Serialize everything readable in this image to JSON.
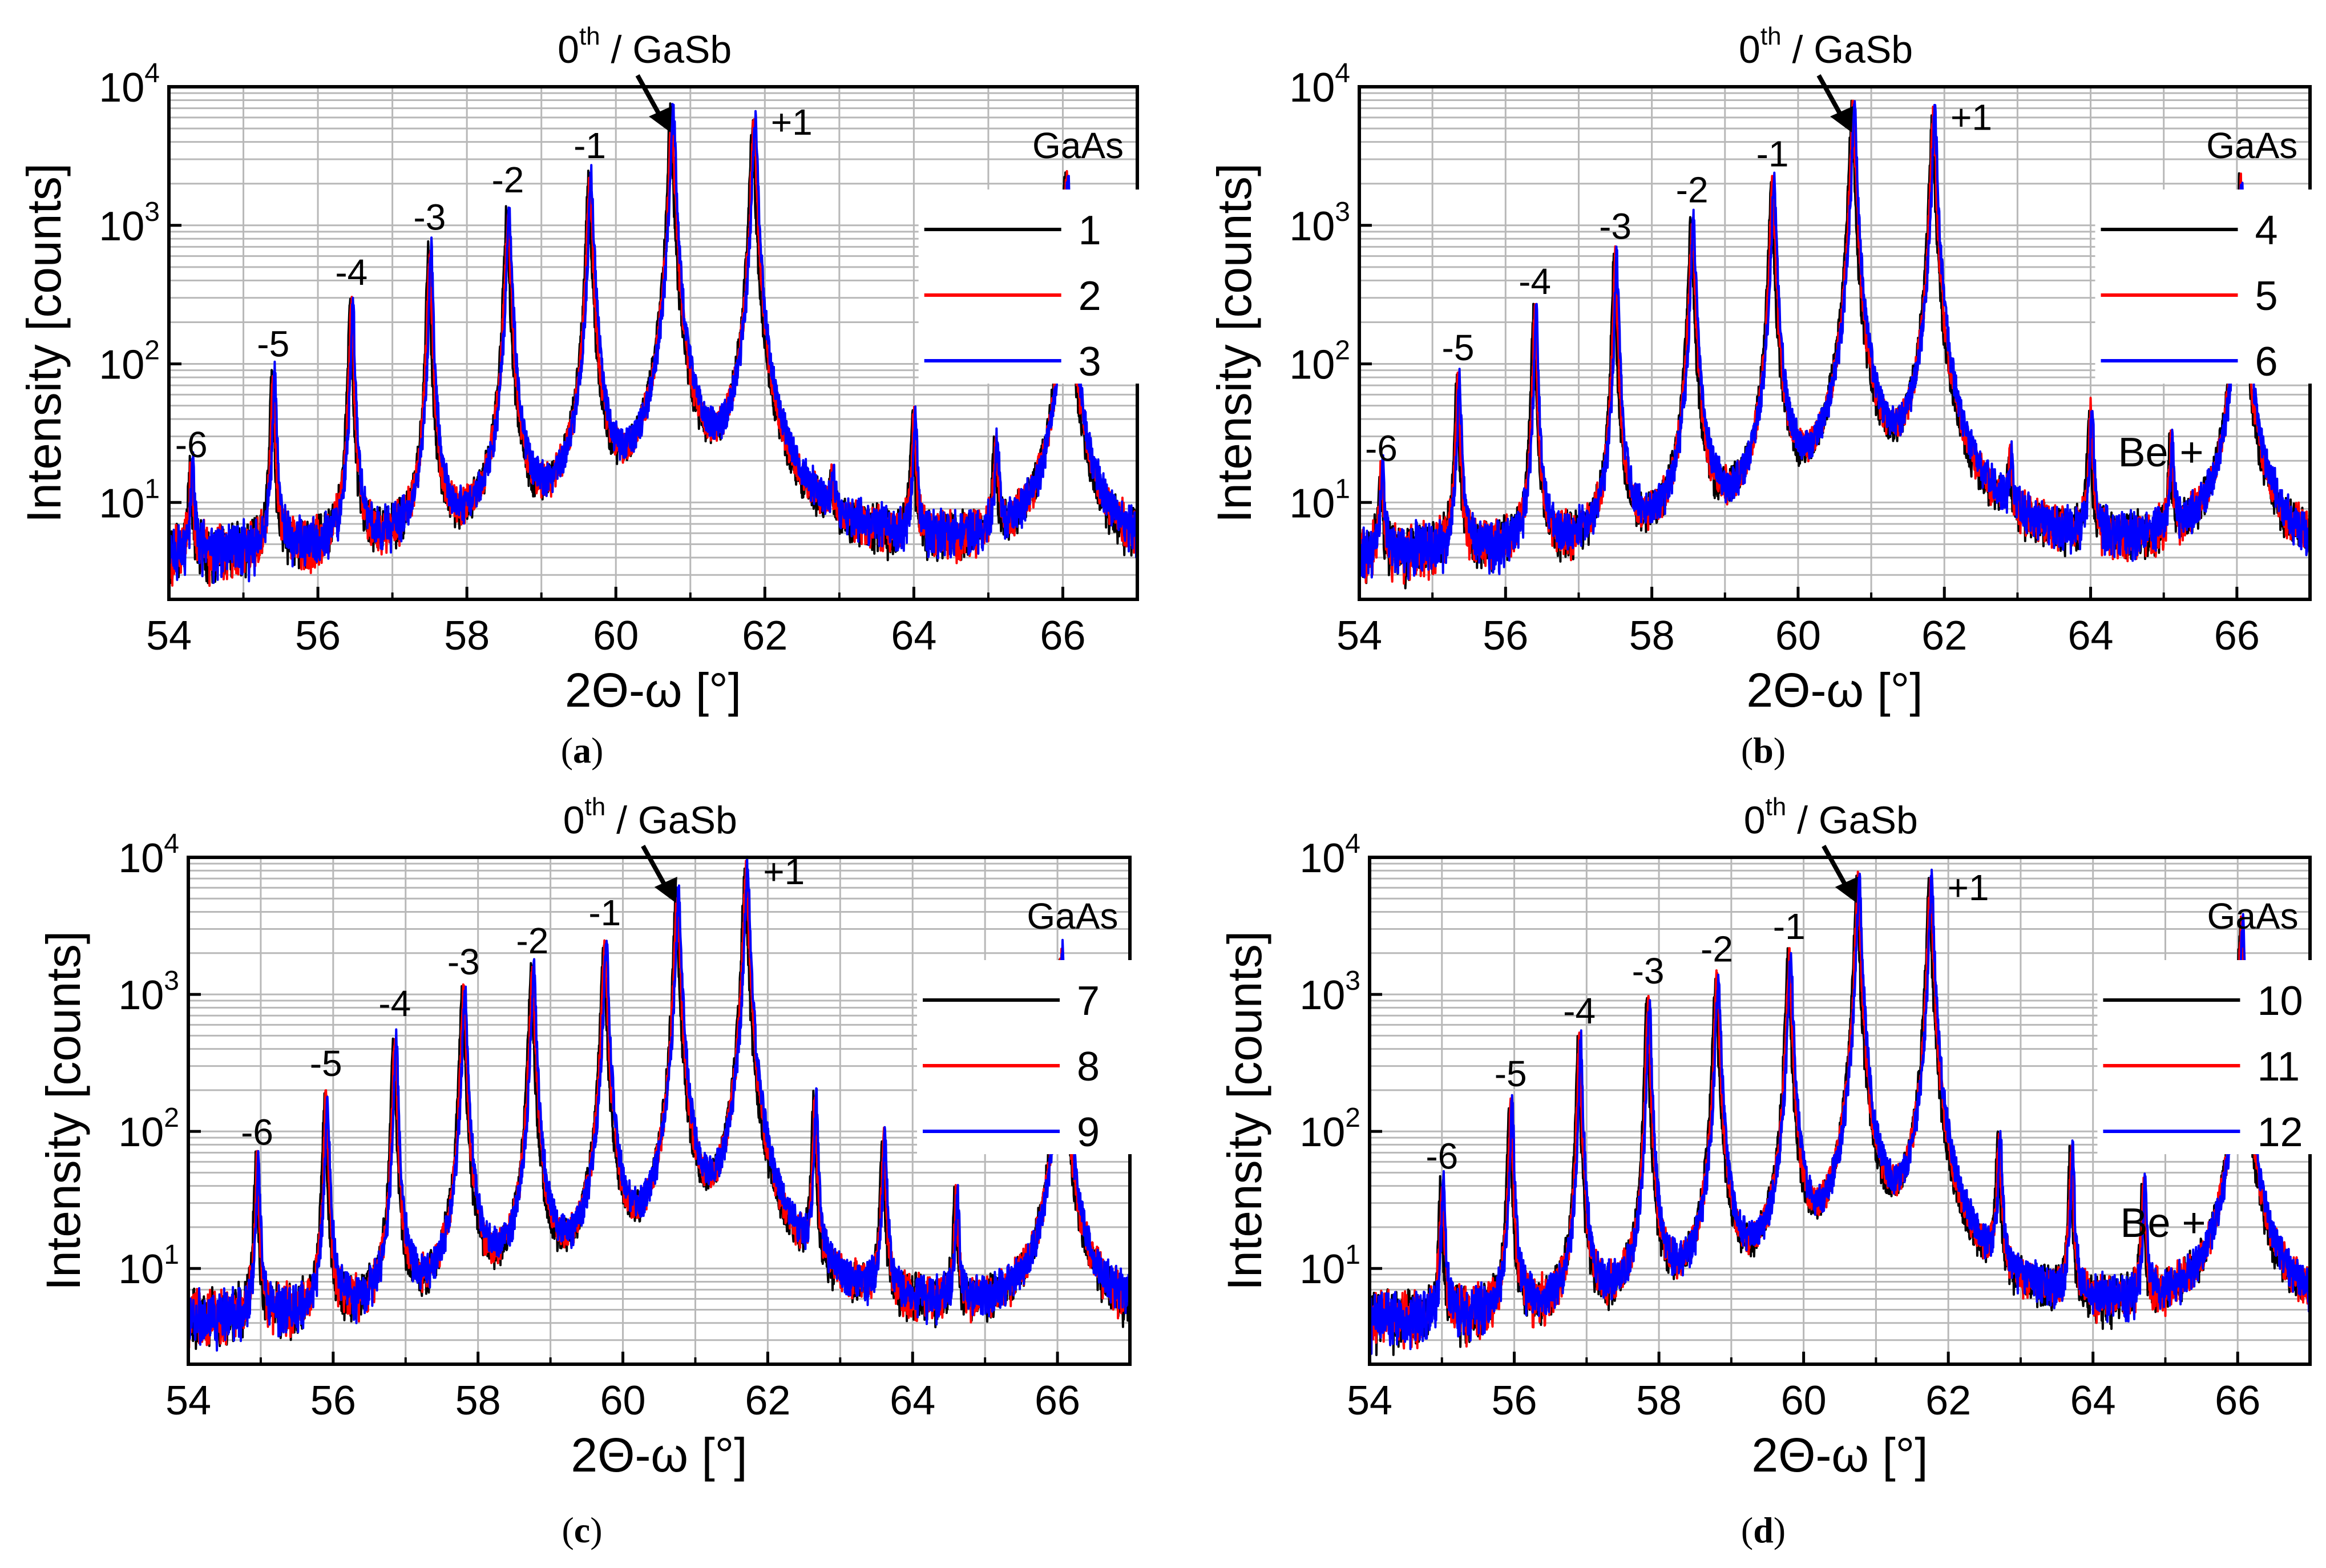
{
  "figure": {
    "panel_labels": [
      "a",
      "b",
      "c",
      "d"
    ]
  },
  "chart_data": [
    {
      "type": "line",
      "panel": "(a)",
      "x_axis_label": "2Θ-ω [°]",
      "y_axis_label": "Intensity [counts]",
      "scale_y": "log",
      "xlim": [
        54,
        67
      ],
      "ylim": [
        2,
        10000
      ],
      "x_ticks": [
        54,
        56,
        58,
        60,
        62,
        64,
        66
      ],
      "y_ticks": [
        {
          "value": 10,
          "label": "10",
          "exp": "1"
        },
        {
          "value": 100,
          "label": "10",
          "exp": "2"
        },
        {
          "value": 1000,
          "label": "10",
          "exp": "3"
        },
        {
          "value": 10000,
          "label": "10",
          "exp": "4"
        }
      ],
      "grid": true,
      "legend_position": "right",
      "series": [
        {
          "name": "1",
          "color": "#000000"
        },
        {
          "name": "2",
          "color": "#ff0000"
        },
        {
          "name": "3",
          "color": "#0000ff"
        }
      ],
      "peaks": [
        {
          "x": 54.3,
          "y": 16,
          "label": "-6"
        },
        {
          "x": 55.4,
          "y": 85,
          "label": "-5"
        },
        {
          "x": 56.45,
          "y": 280,
          "label": "-4"
        },
        {
          "x": 57.5,
          "y": 700,
          "label": "-3"
        },
        {
          "x": 58.55,
          "y": 1300,
          "label": "-2"
        },
        {
          "x": 59.65,
          "y": 2300,
          "label": "-1"
        },
        {
          "x": 60.75,
          "y": 7000,
          "label": ""
        },
        {
          "x": 61.85,
          "y": 6000,
          "label": "+1"
        },
        {
          "x": 62.9,
          "y": 7,
          "label": ""
        },
        {
          "x": 64.0,
          "y": 40,
          "label": ""
        },
        {
          "x": 65.1,
          "y": 25,
          "label": ""
        },
        {
          "x": 66.05,
          "y": 2300,
          "label": "GaAs"
        }
      ],
      "arrow_annotation": {
        "text": "0",
        "sup": "th",
        "suffix": " / GaSb",
        "x": 60.75
      },
      "extra_label": ""
    },
    {
      "type": "line",
      "panel": "(b)",
      "x_axis_label": "2Θ-ω [°]",
      "y_axis_label": "Intensity [counts]",
      "scale_y": "log",
      "xlim": [
        54,
        67
      ],
      "ylim": [
        2,
        10000
      ],
      "x_ticks": [
        54,
        56,
        58,
        60,
        62,
        64,
        66
      ],
      "y_ticks": [
        {
          "value": 10,
          "label": "10",
          "exp": "1"
        },
        {
          "value": 100,
          "label": "10",
          "exp": "2"
        },
        {
          "value": 1000,
          "label": "10",
          "exp": "3"
        },
        {
          "value": 10000,
          "label": "10",
          "exp": "4"
        }
      ],
      "grid": true,
      "legend_position": "right",
      "series": [
        {
          "name": "4",
          "color": "#000000"
        },
        {
          "name": "5",
          "color": "#ff0000"
        },
        {
          "name": "6",
          "color": "#0000ff"
        }
      ],
      "peaks": [
        {
          "x": 54.3,
          "y": 15,
          "label": "-6"
        },
        {
          "x": 55.35,
          "y": 80,
          "label": "-5"
        },
        {
          "x": 56.4,
          "y": 240,
          "label": "-4"
        },
        {
          "x": 57.5,
          "y": 600,
          "label": "-3"
        },
        {
          "x": 58.55,
          "y": 1100,
          "label": "-2"
        },
        {
          "x": 59.65,
          "y": 2000,
          "label": "-1"
        },
        {
          "x": 60.75,
          "y": 7200,
          "label": ""
        },
        {
          "x": 61.85,
          "y": 6500,
          "label": "+1"
        },
        {
          "x": 62.9,
          "y": 12,
          "label": ""
        },
        {
          "x": 64.0,
          "y": 45,
          "label": ""
        },
        {
          "x": 65.1,
          "y": 22,
          "label": ""
        },
        {
          "x": 66.05,
          "y": 2200,
          "label": "GaAs"
        }
      ],
      "arrow_annotation": {
        "text": "0",
        "sup": "th",
        "suffix": " / GaSb",
        "x": 60.75
      },
      "extra_label": "Be +"
    },
    {
      "type": "line",
      "panel": "(c)",
      "x_axis_label": "2Θ-ω [°]",
      "y_axis_label": "Intensity [counts]",
      "scale_y": "log",
      "xlim": [
        54,
        67
      ],
      "ylim": [
        2,
        10000
      ],
      "x_ticks": [
        54,
        56,
        58,
        60,
        62,
        64,
        66
      ],
      "y_ticks": [
        {
          "value": 10,
          "label": "10",
          "exp": "1"
        },
        {
          "value": 100,
          "label": "10",
          "exp": "2"
        },
        {
          "value": 1000,
          "label": "10",
          "exp": "3"
        },
        {
          "value": 10000,
          "label": "10",
          "exp": "4"
        }
      ],
      "grid": true,
      "legend_position": "right",
      "series": [
        {
          "name": "7",
          "color": "#000000"
        },
        {
          "name": "8",
          "color": "#ff0000"
        },
        {
          "name": "9",
          "color": "#0000ff"
        }
      ],
      "peaks": [
        {
          "x": 54.95,
          "y": 60,
          "label": "-6"
        },
        {
          "x": 55.9,
          "y": 190,
          "label": "-5"
        },
        {
          "x": 56.85,
          "y": 520,
          "label": "-4"
        },
        {
          "x": 57.8,
          "y": 1050,
          "label": "-3"
        },
        {
          "x": 58.75,
          "y": 1500,
          "label": "-2"
        },
        {
          "x": 59.75,
          "y": 2400,
          "label": "-1"
        },
        {
          "x": 60.75,
          "y": 5500,
          "label": ""
        },
        {
          "x": 61.7,
          "y": 8500,
          "label": "+1"
        },
        {
          "x": 62.65,
          "y": 160,
          "label": ""
        },
        {
          "x": 63.6,
          "y": 95,
          "label": ""
        },
        {
          "x": 64.6,
          "y": 30,
          "label": ""
        },
        {
          "x": 66.05,
          "y": 2000,
          "label": "GaAs"
        }
      ],
      "arrow_annotation": {
        "text": "0",
        "sup": "th",
        "suffix": " / GaSb",
        "x": 60.75
      },
      "extra_label": ""
    },
    {
      "type": "line",
      "panel": "(d)",
      "x_axis_label": "2Θ-ω [°]",
      "y_axis_label": "Intensity [counts]",
      "scale_y": "log",
      "xlim": [
        54,
        67
      ],
      "ylim": [
        2,
        10000
      ],
      "x_ticks": [
        54,
        56,
        58,
        60,
        62,
        64,
        66
      ],
      "y_ticks": [
        {
          "value": 10,
          "label": "10",
          "exp": "1"
        },
        {
          "value": 100,
          "label": "10",
          "exp": "2"
        },
        {
          "value": 1000,
          "label": "10",
          "exp": "3"
        },
        {
          "value": 10000,
          "label": "10",
          "exp": "4"
        }
      ],
      "grid": true,
      "legend_position": "right",
      "series": [
        {
          "name": "10",
          "color": "#000000"
        },
        {
          "name": "11",
          "color": "#ff0000"
        },
        {
          "name": "12",
          "color": "#0000ff"
        }
      ],
      "peaks": [
        {
          "x": 55.0,
          "y": 40,
          "label": "-6"
        },
        {
          "x": 55.95,
          "y": 160,
          "label": "-5"
        },
        {
          "x": 56.9,
          "y": 460,
          "label": "-4"
        },
        {
          "x": 57.85,
          "y": 900,
          "label": "-3"
        },
        {
          "x": 58.8,
          "y": 1300,
          "label": "-2"
        },
        {
          "x": 59.8,
          "y": 1900,
          "label": "-1"
        },
        {
          "x": 60.75,
          "y": 6500,
          "label": ""
        },
        {
          "x": 61.75,
          "y": 6500,
          "label": "+1"
        },
        {
          "x": 62.7,
          "y": 85,
          "label": ""
        },
        {
          "x": 63.7,
          "y": 65,
          "label": ""
        },
        {
          "x": 64.7,
          "y": 35,
          "label": ""
        },
        {
          "x": 66.05,
          "y": 3200,
          "label": "GaAs"
        }
      ],
      "arrow_annotation": {
        "text": "0",
        "sup": "th",
        "suffix": " / GaSb",
        "x": 60.75
      },
      "extra_label": "Be +"
    }
  ]
}
